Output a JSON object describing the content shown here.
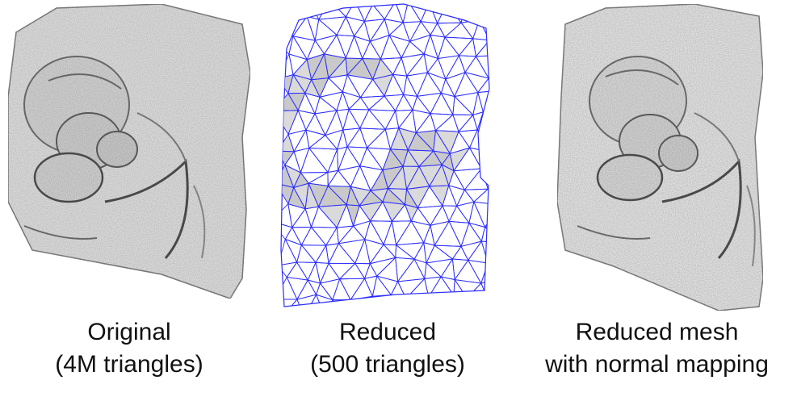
{
  "panels": [
    {
      "name": "original",
      "line1": "Original",
      "line2": "(4M triangles)"
    },
    {
      "name": "reduced",
      "line1": "Reduced",
      "line2": "(500 triangles)"
    },
    {
      "name": "normal-mapped",
      "line1": "Reduced mesh",
      "line2": "with normal mapping"
    }
  ],
  "colors": {
    "mesh_edges": "#2b2bff",
    "surface": "#e6e6e6",
    "shadow": "#9a9a9a"
  }
}
